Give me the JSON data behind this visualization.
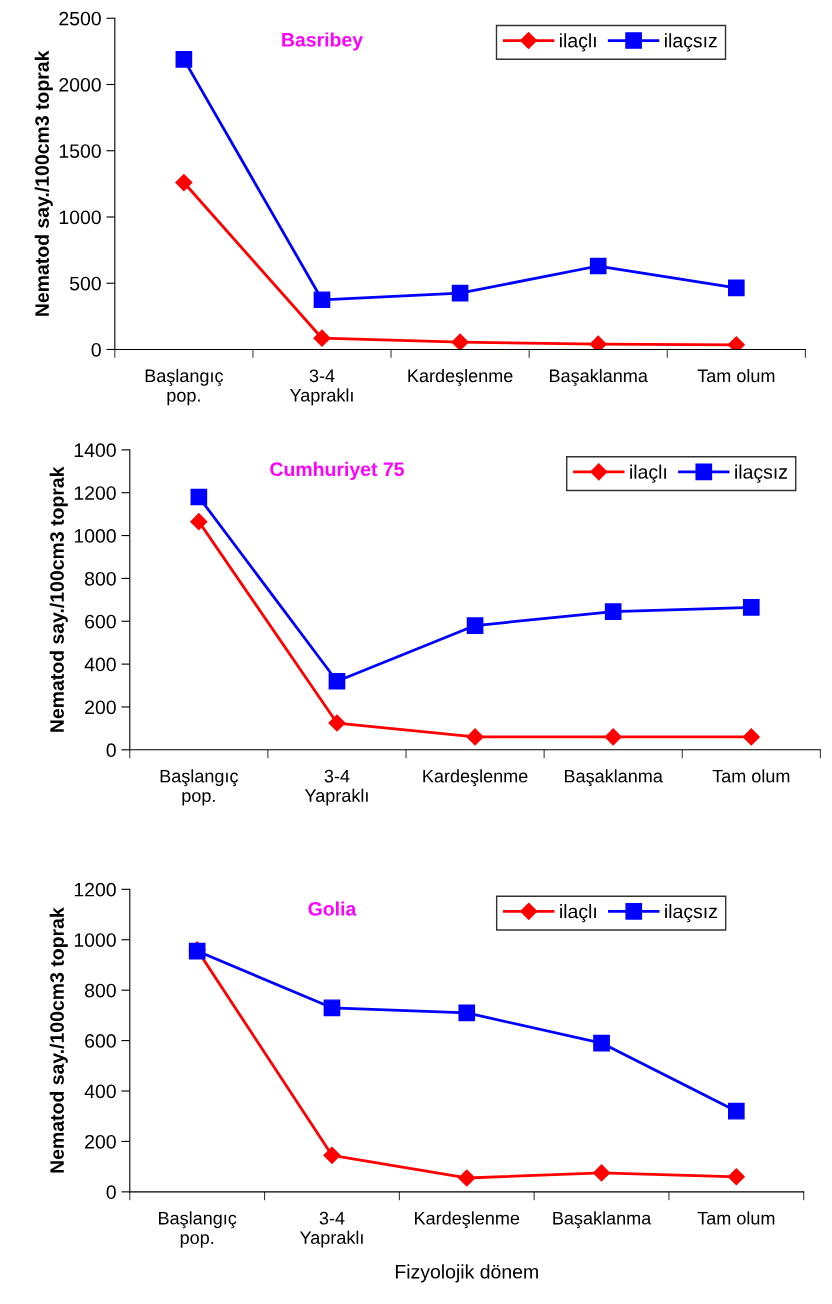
{
  "chart_data": [
    {
      "type": "line",
      "title": "Basribey",
      "ylabel": "Nematod say./100cm3 toprak",
      "categories": [
        "Başlangıç\npop.",
        "3-4\nYapraklı",
        "Kardeşlenme",
        "Başaklanma",
        "Tam olum"
      ],
      "ylim": [
        0,
        2500
      ],
      "yticks": [
        0,
        500,
        1000,
        1500,
        2000,
        2500
      ],
      "legend": "top right",
      "grid": false,
      "series": [
        {
          "name": "ilaçlı",
          "color": "#ff0000",
          "marker": "diamond",
          "values": [
            1260,
            85,
            55,
            40,
            35
          ]
        },
        {
          "name": "ilaçsız",
          "color": "#0000ff",
          "marker": "square",
          "values": [
            2190,
            375,
            425,
            630,
            465
          ]
        }
      ]
    },
    {
      "type": "line",
      "title": "Cumhuriyet 75",
      "ylabel": "Nematod say./100cm3 toprak",
      "categories": [
        "Başlangıç\npop.",
        "3-4\nYapraklı",
        "Kardeşlenme",
        "Başaklanma",
        "Tam olum"
      ],
      "ylim": [
        0,
        1400
      ],
      "yticks": [
        0,
        200,
        400,
        600,
        800,
        1000,
        1200,
        1400
      ],
      "legend": "top right",
      "grid": false,
      "series": [
        {
          "name": "ilaçlı",
          "color": "#ff0000",
          "marker": "diamond",
          "values": [
            1065,
            125,
            60,
            60,
            60
          ]
        },
        {
          "name": "ilaçsız",
          "color": "#0000ff",
          "marker": "square",
          "values": [
            1180,
            320,
            580,
            645,
            665
          ]
        }
      ]
    },
    {
      "type": "line",
      "title": "Golia",
      "ylabel": "Nematod say./100cm3 toprak",
      "xlabel": "Fizyolojik dönem",
      "categories": [
        "Başlangıç\npop.",
        "3-4\nYapraklı",
        "Kardeşlenme",
        "Başaklanma",
        "Tam olum"
      ],
      "ylim": [
        0,
        1200
      ],
      "yticks": [
        0,
        200,
        400,
        600,
        800,
        1000,
        1200
      ],
      "legend": "top right",
      "grid": false,
      "series": [
        {
          "name": "ilaçlı",
          "color": "#ff0000",
          "marker": "diamond",
          "values": [
            960,
            145,
            55,
            75,
            60
          ]
        },
        {
          "name": "ilaçsız",
          "color": "#0000ff",
          "marker": "square",
          "values": [
            955,
            730,
            710,
            590,
            320
          ]
        }
      ]
    }
  ]
}
